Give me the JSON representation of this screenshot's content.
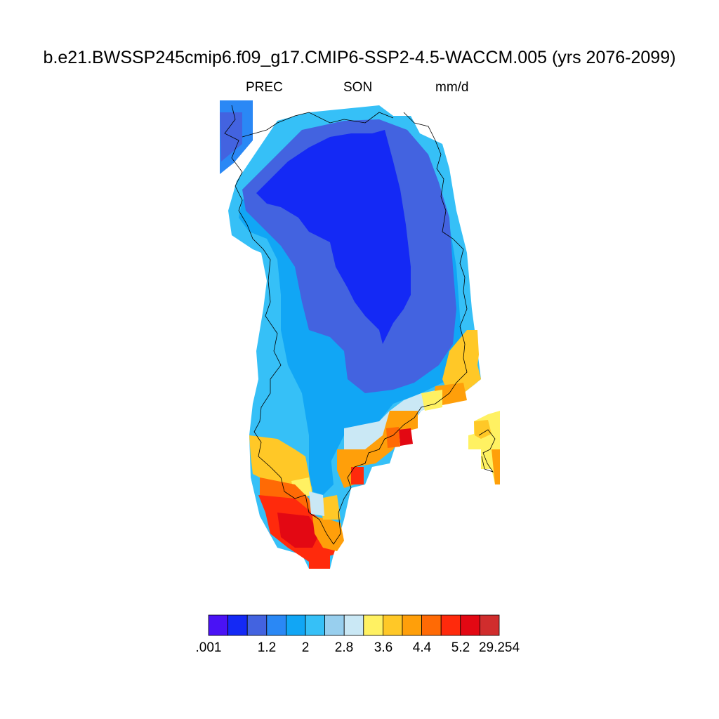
{
  "title": "b.e21.BWSSP245cmip6.f09_g17.CMIP6-SSP2-4.5-WACCM.005 (yrs 2076-2099)",
  "subtitle": {
    "left": "PREC",
    "center": "SON",
    "right": "mm/d"
  },
  "colorbar": {
    "colors": [
      "#4a12f5",
      "#1429f5",
      "#4363e0",
      "#2a88f5",
      "#11a6f5",
      "#36c0f7",
      "#98cfee",
      "#cae8f5",
      "#fff162",
      "#ffc827",
      "#ff9f0a",
      "#ff6a05",
      "#ff2a0c",
      "#e30813",
      "#d02d2d"
    ],
    "labels": [
      ".001",
      "1.2",
      "2",
      "2.8",
      "3.6",
      "4.4",
      "5.2",
      "29.254"
    ]
  },
  "chart_data": {
    "type": "heatmap",
    "variable": "PREC",
    "season": "SON",
    "units": "mm/d",
    "region": "Greenland",
    "period": "yrs 2076-2099",
    "levels": [
      ".001",
      "1.2",
      "2",
      "2.8",
      "3.6",
      "4.4",
      "5.2",
      "29.254"
    ],
    "pattern": {
      "north_interior": "lowest (< 1.2 mm/d)",
      "central_interior": "1.2-2 mm/d",
      "west_coast": "2-2.8 mm/d",
      "southeast_coast": "3.6-5.2 mm/d",
      "south_tip": "5.2-29.254 mm/d"
    }
  }
}
